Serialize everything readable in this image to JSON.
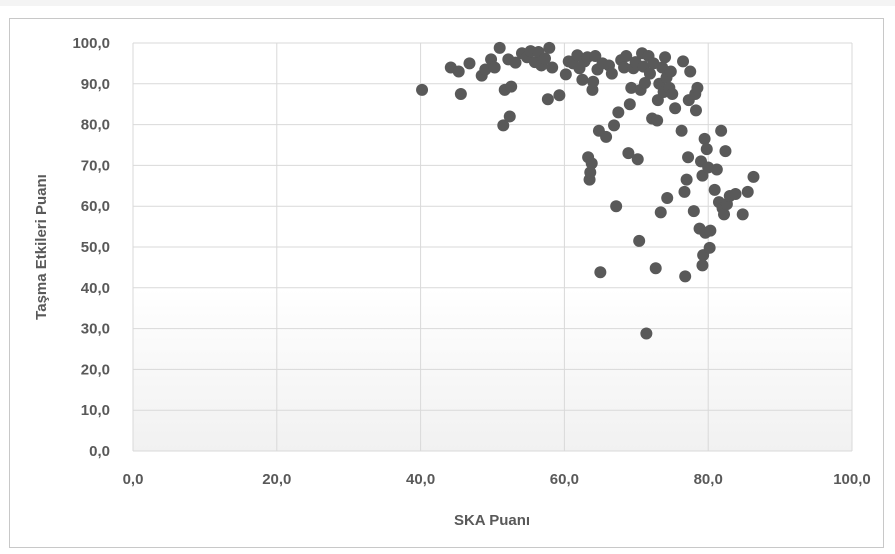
{
  "chart_data": {
    "type": "scatter",
    "title": "",
    "xlabel": "SKA Puanı",
    "ylabel": "Taşma Etkileri  Puanı",
    "xlim": [
      0,
      100
    ],
    "ylim": [
      0,
      100
    ],
    "x_ticks": [
      "0,0",
      "20,0",
      "40,0",
      "60,0",
      "80,0",
      "100,0"
    ],
    "y_ticks": [
      "0,0",
      "10,0",
      "20,0",
      "30,0",
      "40,0",
      "50,0",
      "60,0",
      "70,0",
      "80,0",
      "90,0",
      "100,0"
    ],
    "grid": true,
    "marker_color": "#595959",
    "points": [
      [
        40.2,
        88.5
      ],
      [
        44.2,
        94.0
      ],
      [
        45.3,
        93.0
      ],
      [
        45.6,
        87.5
      ],
      [
        46.8,
        95.0
      ],
      [
        48.5,
        92.0
      ],
      [
        49.0,
        93.5
      ],
      [
        49.8,
        96.0
      ],
      [
        50.3,
        94.0
      ],
      [
        51.0,
        98.8
      ],
      [
        51.5,
        79.8
      ],
      [
        51.7,
        88.5
      ],
      [
        52.2,
        96.0
      ],
      [
        52.4,
        82.0
      ],
      [
        52.6,
        89.3
      ],
      [
        53.2,
        95.2
      ],
      [
        54.1,
        97.5
      ],
      [
        54.8,
        96.5
      ],
      [
        55.3,
        98.0
      ],
      [
        55.9,
        95.3
      ],
      [
        56.4,
        97.8
      ],
      [
        56.8,
        94.5
      ],
      [
        57.3,
        96.2
      ],
      [
        57.7,
        86.2
      ],
      [
        57.9,
        98.8
      ],
      [
        58.3,
        94.0
      ],
      [
        59.3,
        87.2
      ],
      [
        60.2,
        92.3
      ],
      [
        60.6,
        95.5
      ],
      [
        61.2,
        95.0
      ],
      [
        61.8,
        97.0
      ],
      [
        62.1,
        93.8
      ],
      [
        62.5,
        91.0
      ],
      [
        62.8,
        95.5
      ],
      [
        63.2,
        96.5
      ],
      [
        63.3,
        72.0
      ],
      [
        63.5,
        66.5
      ],
      [
        63.6,
        68.3
      ],
      [
        63.8,
        70.5
      ],
      [
        63.9,
        88.5
      ],
      [
        64.0,
        90.5
      ],
      [
        64.3,
        96.8
      ],
      [
        64.6,
        93.5
      ],
      [
        64.8,
        78.5
      ],
      [
        65.0,
        43.8
      ],
      [
        65.3,
        95.0
      ],
      [
        65.8,
        77.0
      ],
      [
        66.2,
        94.5
      ],
      [
        66.6,
        92.5
      ],
      [
        66.9,
        79.8
      ],
      [
        67.2,
        60.0
      ],
      [
        67.5,
        83.0
      ],
      [
        67.9,
        95.8
      ],
      [
        68.3,
        94.0
      ],
      [
        68.6,
        96.8
      ],
      [
        68.9,
        73.0
      ],
      [
        69.1,
        85.0
      ],
      [
        69.3,
        89.0
      ],
      [
        69.6,
        93.8
      ],
      [
        69.9,
        95.3
      ],
      [
        70.2,
        71.5
      ],
      [
        70.4,
        51.5
      ],
      [
        70.6,
        88.5
      ],
      [
        70.8,
        97.5
      ],
      [
        71.0,
        94.2
      ],
      [
        71.2,
        90.2
      ],
      [
        71.4,
        28.8
      ],
      [
        71.7,
        96.8
      ],
      [
        71.9,
        92.5
      ],
      [
        72.2,
        81.5
      ],
      [
        72.4,
        95.0
      ],
      [
        72.7,
        44.8
      ],
      [
        72.9,
        81.0
      ],
      [
        73.0,
        86.0
      ],
      [
        73.2,
        90.0
      ],
      [
        73.4,
        58.5
      ],
      [
        73.6,
        94.0
      ],
      [
        73.8,
        88.0
      ],
      [
        74.0,
        96.5
      ],
      [
        74.2,
        91.5
      ],
      [
        74.3,
        62.0
      ],
      [
        74.6,
        89.0
      ],
      [
        74.8,
        93.0
      ],
      [
        75.0,
        87.5
      ],
      [
        75.4,
        84.0
      ],
      [
        76.3,
        78.5
      ],
      [
        76.5,
        95.5
      ],
      [
        76.7,
        63.5
      ],
      [
        76.8,
        42.8
      ],
      [
        77.0,
        66.5
      ],
      [
        77.2,
        72.0
      ],
      [
        77.3,
        86.0
      ],
      [
        77.5,
        93.0
      ],
      [
        78.0,
        58.8
      ],
      [
        78.2,
        87.5
      ],
      [
        78.3,
        83.5
      ],
      [
        78.5,
        89.0
      ],
      [
        78.8,
        54.5
      ],
      [
        79.0,
        71.0
      ],
      [
        79.2,
        67.5
      ],
      [
        79.2,
        45.5
      ],
      [
        79.3,
        48.0
      ],
      [
        79.5,
        76.5
      ],
      [
        79.6,
        53.5
      ],
      [
        79.8,
        74.0
      ],
      [
        80.0,
        69.5
      ],
      [
        80.2,
        49.8
      ],
      [
        80.3,
        54.0
      ],
      [
        80.9,
        64.0
      ],
      [
        81.2,
        69.0
      ],
      [
        81.5,
        61.0
      ],
      [
        81.8,
        78.5
      ],
      [
        82.0,
        59.5
      ],
      [
        82.2,
        58.0
      ],
      [
        82.4,
        73.5
      ],
      [
        82.6,
        60.5
      ],
      [
        83.0,
        62.5
      ],
      [
        83.8,
        63.0
      ],
      [
        84.8,
        58.0
      ],
      [
        85.5,
        63.5
      ],
      [
        86.3,
        67.2
      ]
    ]
  }
}
